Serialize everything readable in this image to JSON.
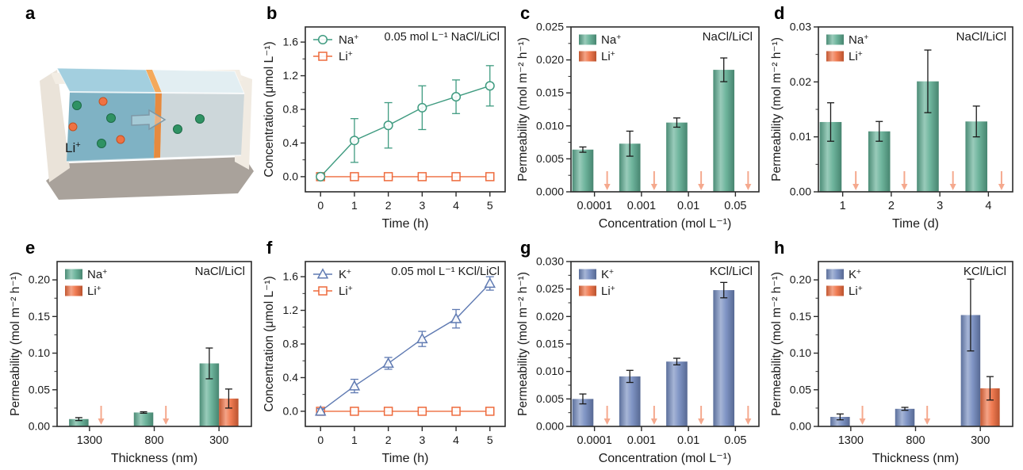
{
  "panel_a": {
    "label": "a",
    "li_label": "Li+",
    "colors": {
      "left_solution": "#7fb2c4",
      "left_solution_top": "#a3cfdf",
      "right_solution": "#cdd7da",
      "right_solution_top": "#e2eef2",
      "membrane_front": "#e68a3e",
      "membrane_top": "#f4a95b",
      "cation_dot": "#2f9263",
      "lithium_dot": "#ef7243",
      "tray_light": "#eee8de",
      "tray_dark": "#a9a29b"
    }
  },
  "chart_data": [
    {
      "letter": "b",
      "type": "line",
      "annotation": "0.05 mol L⁻¹ NaCl/LiCl",
      "xlabel": "Time (h)",
      "ylabel": "Concentration (μmol L⁻¹)",
      "xlim": [
        -0.45,
        5.45
      ],
      "ylim": [
        -0.18,
        1.78
      ],
      "xticks": [
        "0",
        "1",
        "2",
        "3",
        "4",
        "5"
      ],
      "yticks": [
        "0.0",
        "0.4",
        "0.8",
        "1.2",
        "1.6"
      ],
      "x": [
        0,
        1,
        2,
        3,
        4,
        5
      ],
      "series": [
        {
          "name": "Na+",
          "marker": "circle",
          "color": "#3f9b80",
          "values": [
            0,
            0.43,
            0.61,
            0.82,
            0.95,
            1.08
          ],
          "errors": [
            0,
            0.26,
            0.27,
            0.26,
            0.2,
            0.24
          ]
        },
        {
          "name": "Li+",
          "marker": "square",
          "color": "#ee6a3c",
          "values": [
            0,
            0,
            0,
            0,
            0,
            0
          ],
          "errors": [
            0,
            0,
            0,
            0,
            0,
            0
          ]
        }
      ]
    },
    {
      "letter": "c",
      "type": "bar",
      "annotation": "NaCl/LiCl",
      "xlabel": "Concentration (mol L⁻¹)",
      "ylabel": "Permeability (mol m⁻² h⁻¹)",
      "ylim": [
        0,
        0.025
      ],
      "yticks": [
        "0.000",
        "0.005",
        "0.010",
        "0.015",
        "0.020",
        "0.025"
      ],
      "categories": [
        "0.0001",
        "0.001",
        "0.01",
        "0.05"
      ],
      "series": [
        {
          "name": "Na+",
          "color": "#5bab90",
          "values": [
            0.0064,
            0.0073,
            0.0105,
            0.0185
          ],
          "errors": [
            0.0004,
            0.0019,
            0.0007,
            0.0018
          ]
        },
        {
          "name": "Li+",
          "color": "#ee6a3c",
          "below_detection": true,
          "values": [
            null,
            null,
            null,
            null
          ],
          "errors": [
            null,
            null,
            null,
            null
          ]
        }
      ]
    },
    {
      "letter": "d",
      "type": "bar",
      "annotation": "NaCl/LiCl",
      "xlabel": "Time (d)",
      "ylabel": "Permeability (mol m⁻² h⁻¹)",
      "ylim": [
        0,
        0.03
      ],
      "yticks": [
        "0.00",
        "0.01",
        "0.02",
        "0.03"
      ],
      "categories": [
        "1",
        "2",
        "3",
        "4"
      ],
      "series": [
        {
          "name": "Na+",
          "color": "#5bab90",
          "values": [
            0.0127,
            0.011,
            0.0201,
            0.0128
          ],
          "errors": [
            0.0035,
            0.0018,
            0.0057,
            0.0028
          ]
        },
        {
          "name": "Li+",
          "color": "#ee6a3c",
          "below_detection": true,
          "values": [
            null,
            null,
            null,
            null
          ],
          "errors": [
            null,
            null,
            null,
            null
          ]
        }
      ]
    },
    {
      "letter": "e",
      "type": "bar",
      "annotation": "NaCl/LiCl",
      "xlabel": "Thickness (nm)",
      "ylabel": "Permeability (mol m⁻² h⁻¹)",
      "ylim": [
        0,
        0.225
      ],
      "yticks": [
        "0.00",
        "0.05",
        "0.10",
        "0.15",
        "0.20"
      ],
      "categories": [
        "1300",
        "800",
        "300"
      ],
      "series": [
        {
          "name": "Na+",
          "color": "#5bab90",
          "values": [
            0.01,
            0.019,
            0.086
          ],
          "errors": [
            0.002,
            0.001,
            0.021
          ]
        },
        {
          "name": "Li+",
          "color": "#ee6a3c",
          "below_detection": true,
          "values": [
            null,
            null,
            0.038
          ],
          "errors": [
            null,
            null,
            0.013
          ]
        }
      ]
    },
    {
      "letter": "f",
      "type": "line",
      "annotation": "0.05 mol L⁻¹ KCl/LiCl",
      "xlabel": "Time (h)",
      "ylabel": "Concentration (μmol L⁻¹)",
      "xlim": [
        -0.45,
        5.45
      ],
      "ylim": [
        -0.18,
        1.78
      ],
      "xticks": [
        "0",
        "1",
        "2",
        "3",
        "4",
        "5"
      ],
      "yticks": [
        "0.0",
        "0.4",
        "0.8",
        "1.2",
        "1.6"
      ],
      "x": [
        0,
        1,
        2,
        3,
        4,
        5
      ],
      "series": [
        {
          "name": "K+",
          "marker": "triangle",
          "color": "#5f7ab2",
          "values": [
            0,
            0.3,
            0.57,
            0.86,
            1.1,
            1.52
          ],
          "errors": [
            0.03,
            0.08,
            0.07,
            0.09,
            0.11,
            0.08
          ]
        },
        {
          "name": "Li+",
          "marker": "square",
          "color": "#ee6a3c",
          "values": [
            0,
            0,
            0,
            0,
            0,
            0
          ],
          "errors": [
            0,
            0,
            0,
            0,
            0,
            0
          ]
        }
      ]
    },
    {
      "letter": "g",
      "type": "bar",
      "annotation": "KCl/LiCl",
      "xlabel": "Concentration (mol L⁻¹)",
      "ylabel": "Permeability (mol m⁻² h⁻¹)",
      "ylim": [
        0,
        0.03
      ],
      "yticks": [
        "0.000",
        "0.005",
        "0.010",
        "0.015",
        "0.020",
        "0.025",
        "0.030"
      ],
      "categories": [
        "0.0001",
        "0.001",
        "0.01",
        "0.05"
      ],
      "series": [
        {
          "name": "K+",
          "color": "#6f87bd",
          "values": [
            0.005,
            0.0091,
            0.0118,
            0.0248
          ],
          "errors": [
            0.0009,
            0.0011,
            0.0006,
            0.0014
          ]
        },
        {
          "name": "Li+",
          "color": "#ee6a3c",
          "below_detection": true,
          "values": [
            null,
            null,
            null,
            null
          ],
          "errors": [
            null,
            null,
            null,
            null
          ]
        }
      ]
    },
    {
      "letter": "h",
      "type": "bar",
      "annotation": "KCl/LiCl",
      "xlabel": "Thickness (nm)",
      "ylabel": "Permeability (mol m⁻² h⁻¹)",
      "ylim": [
        0,
        0.225
      ],
      "yticks": [
        "0.00",
        "0.05",
        "0.10",
        "0.15",
        "0.20"
      ],
      "categories": [
        "1300",
        "800",
        "300"
      ],
      "series": [
        {
          "name": "K+",
          "color": "#6f87bd",
          "values": [
            0.013,
            0.024,
            0.152
          ],
          "errors": [
            0.004,
            0.002,
            0.049
          ]
        },
        {
          "name": "Li+",
          "color": "#ee6a3c",
          "below_detection": true,
          "values": [
            null,
            null,
            0.052
          ],
          "errors": [
            null,
            null,
            0.016
          ]
        }
      ]
    }
  ]
}
